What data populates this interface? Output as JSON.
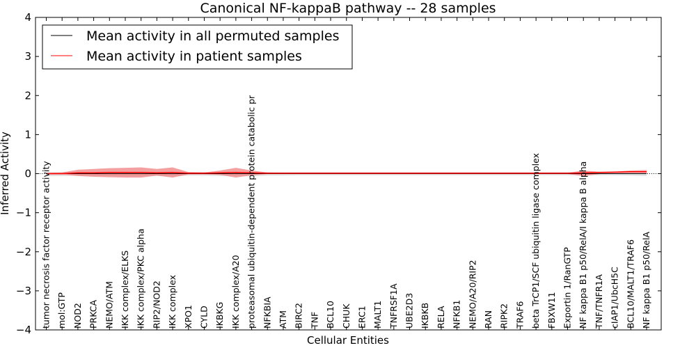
{
  "chart_data": {
    "type": "line",
    "title": "Canonical NF-kappaB pathway -- 28 samples",
    "xlabel": "Cellular Entities",
    "ylabel": "Inferred Activity",
    "ylim": [
      -4,
      4
    ],
    "yticks": [
      4,
      3,
      2,
      1,
      0,
      -1,
      -2,
      -3,
      -4
    ],
    "ytick_labels": [
      "4",
      "3",
      "2",
      "1",
      "0",
      "−1",
      "−2",
      "−3",
      "−4"
    ],
    "legend_position": "top-left",
    "categories": [
      "tumor necrosis factor receptor activity",
      "mol:GTP",
      "NOD2",
      "PRKCA",
      "NEMO/ATM",
      "IKK complex/ELKS",
      "IKK complex/PKC alpha",
      "RIP2/NOD2",
      "IKK complex",
      "XPO1",
      "CYLD",
      "IKBKG",
      "IKK complex/A20",
      "proteasomal ubiquitin-dependent protein catabolic pr",
      "NFKBIA",
      "ATM",
      "BIRC2",
      "TNF",
      "BCL10",
      "CHUK",
      "ERC1",
      "MALT1",
      "TNFRSF1A",
      "UBE2D3",
      "IKBKB",
      "RELA",
      "NFKB1",
      "NEMO/A20/RIP2",
      "RAN",
      "RIPK2",
      "TRAF6",
      "beta TrCP1/SCF ubiquitin ligase complex",
      "FBXW11",
      "Exportin 1/RanGTP",
      "NF kappa B1 p50/RelA/I kappa B alpha",
      "TNF/TNFR1A",
      "cIAP1/UbcH5C",
      "BCL10/MALT1/TRAF6",
      "NF kappa B1 p50/RelA"
    ],
    "series": [
      {
        "name": "Mean activity in all permuted samples",
        "color": "#000000",
        "values": [
          0.0,
          0.0,
          0.0,
          0.0,
          0.0,
          0.0,
          0.0,
          0.0,
          0.0,
          0.0,
          0.0,
          0.0,
          0.0,
          0.0,
          0.0,
          0.0,
          0.0,
          0.0,
          0.0,
          0.0,
          0.0,
          0.0,
          0.0,
          0.0,
          0.0,
          0.0,
          0.0,
          0.0,
          0.0,
          0.0,
          0.0,
          0.0,
          0.0,
          0.0,
          0.0,
          0.0,
          0.0,
          0.0,
          0.0
        ],
        "band_upper": [
          0.04,
          0.04,
          0.04,
          0.04,
          0.04,
          0.04,
          0.04,
          0.04,
          0.04,
          0.04,
          0.04,
          0.04,
          0.04,
          0.04,
          0.04,
          0.04,
          0.04,
          0.04,
          0.04,
          0.04,
          0.04,
          0.04,
          0.04,
          0.04,
          0.04,
          0.04,
          0.04,
          0.04,
          0.04,
          0.04,
          0.04,
          0.04,
          0.04,
          0.04,
          0.04,
          0.04,
          0.04,
          0.04,
          0.04
        ],
        "band_lower": [
          -0.06,
          -0.06,
          -0.05,
          -0.06,
          -0.06,
          -0.07,
          -0.07,
          -0.06,
          -0.07,
          -0.05,
          -0.05,
          -0.06,
          -0.06,
          -0.07,
          -0.05,
          -0.05,
          -0.04,
          -0.04,
          -0.04,
          -0.04,
          -0.04,
          -0.04,
          -0.04,
          -0.04,
          -0.04,
          -0.04,
          -0.04,
          -0.04,
          -0.04,
          -0.04,
          -0.04,
          -0.04,
          -0.04,
          -0.04,
          -0.04,
          -0.04,
          -0.04,
          -0.05,
          -0.06
        ]
      },
      {
        "name": "Mean activity in patient samples",
        "color": "#ff0000",
        "values": [
          0.0,
          0.0,
          0.02,
          0.02,
          0.03,
          0.03,
          0.03,
          0.02,
          0.03,
          0.01,
          0.01,
          0.02,
          0.03,
          0.02,
          0.01,
          0.01,
          0.01,
          0.01,
          0.01,
          0.01,
          0.01,
          0.01,
          0.01,
          0.01,
          0.01,
          0.01,
          0.01,
          0.01,
          0.01,
          0.01,
          0.01,
          0.01,
          0.01,
          0.01,
          0.02,
          0.03,
          0.04,
          0.05,
          0.05
        ],
        "band_upper": [
          0.02,
          0.03,
          0.1,
          0.12,
          0.14,
          0.15,
          0.16,
          0.12,
          0.16,
          0.04,
          0.03,
          0.08,
          0.15,
          0.08,
          0.03,
          0.02,
          0.02,
          0.02,
          0.02,
          0.02,
          0.02,
          0.02,
          0.02,
          0.02,
          0.02,
          0.02,
          0.02,
          0.02,
          0.02,
          0.02,
          0.02,
          0.02,
          0.02,
          0.02,
          0.08,
          0.05,
          0.05,
          0.08,
          0.09
        ],
        "band_lower": [
          -0.02,
          -0.02,
          -0.06,
          -0.08,
          -0.09,
          -0.1,
          -0.1,
          -0.05,
          -0.1,
          -0.02,
          -0.02,
          -0.03,
          -0.1,
          -0.04,
          -0.01,
          -0.01,
          -0.01,
          -0.01,
          -0.01,
          -0.01,
          -0.01,
          -0.01,
          -0.01,
          -0.01,
          -0.01,
          -0.01,
          -0.01,
          -0.01,
          -0.01,
          -0.01,
          -0.01,
          -0.01,
          -0.01,
          -0.01,
          -0.06,
          -0.01,
          0.01,
          0.02,
          0.02
        ]
      }
    ],
    "colors": {
      "permuted_band": "#c8c8c8",
      "patient_band": "#f08080",
      "zero_line": "#000000"
    }
  }
}
